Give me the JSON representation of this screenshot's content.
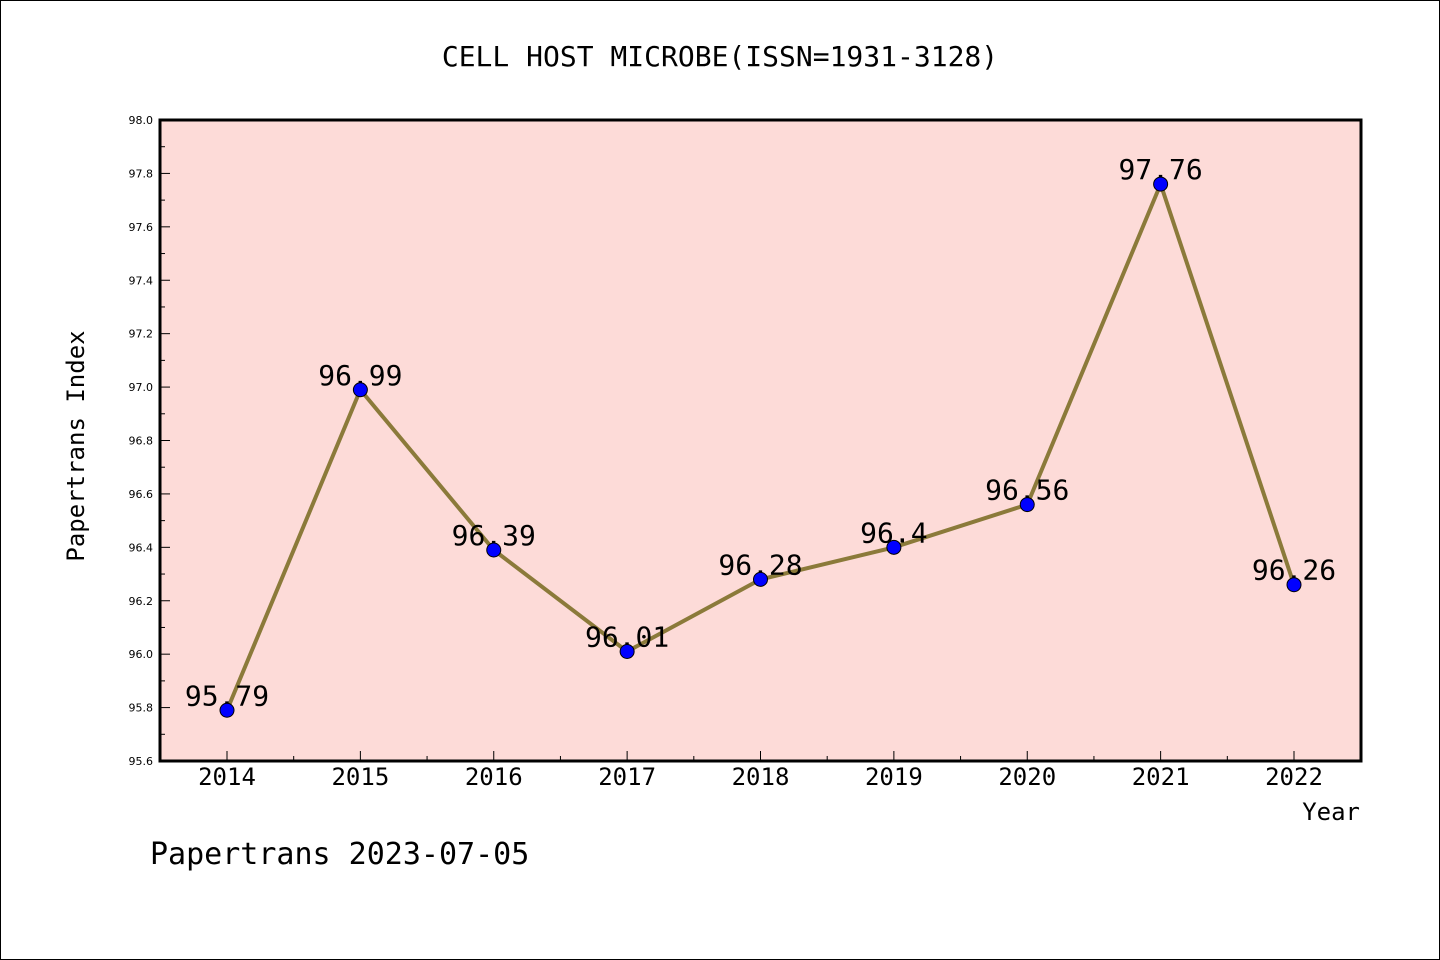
{
  "chart_data": {
    "type": "line",
    "title": "CELL HOST MICROBE(ISSN=1931-3128)",
    "xlabel": "Year",
    "ylabel": "Papertrans Index",
    "categories": [
      "2014",
      "2015",
      "2016",
      "2017",
      "2018",
      "2019",
      "2020",
      "2021",
      "2022"
    ],
    "series": [
      {
        "name": "Papertrans Index",
        "values": [
          95.79,
          96.99,
          96.39,
          96.01,
          96.28,
          96.4,
          96.56,
          97.76,
          96.26
        ],
        "labels": [
          "95.79",
          "96.99",
          "96.39",
          "96.01",
          "96.28",
          "96.4",
          "96.56",
          "97.76",
          "96.26"
        ]
      }
    ],
    "ylim": [
      95.6,
      98.0
    ],
    "yticks": [
      "95.6",
      "95.8",
      "96.0",
      "96.2",
      "96.4",
      "96.6",
      "96.8",
      "97.0",
      "97.2",
      "97.4",
      "97.6",
      "97.8",
      "98.0"
    ],
    "grid": false,
    "colors": {
      "plot_background": "#fddbd8",
      "line": "#8b7a3a",
      "marker": "#0000ff"
    }
  },
  "footer": "Papertrans 2023-07-05"
}
